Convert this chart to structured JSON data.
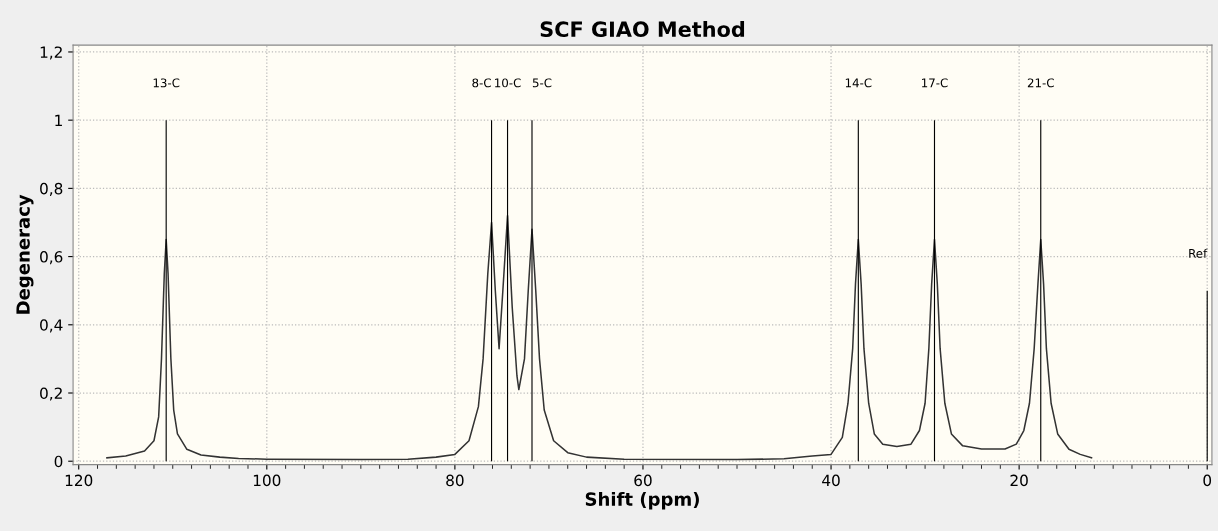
{
  "chart_data": {
    "type": "line",
    "title": "SCF GIAO Method",
    "xlabel": "Shift (ppm)",
    "ylabel": "Degeneracy",
    "xlim": [
      120.6,
      -0.5
    ],
    "ylim": [
      -0.01,
      1.22
    ],
    "xticks": [
      120,
      100,
      80,
      60,
      40,
      20,
      0
    ],
    "yticks": [
      {
        "value": 0,
        "label": "0"
      },
      {
        "value": 0.2,
        "label": "0,2"
      },
      {
        "value": 0.4,
        "label": "0,4"
      },
      {
        "value": 0.6,
        "label": "0,6"
      },
      {
        "value": 0.8,
        "label": "0,8"
      },
      {
        "value": 1,
        "label": "1"
      },
      {
        "value": 1.2,
        "label": "1,2"
      }
    ],
    "grid": true,
    "marker": "none",
    "line_style": "solid",
    "series": [
      {
        "color": "#333333",
        "x": [
          117,
          115,
          113,
          112,
          111.5,
          111.2,
          110.9,
          110.7,
          110.5,
          110.2,
          109.9,
          109.5,
          108.5,
          107,
          105,
          103,
          100,
          90,
          85,
          82,
          80,
          78.5,
          77.5,
          77,
          76.5,
          76.1,
          75.7,
          75.3,
          74.9,
          74.4,
          73.9,
          73.4,
          73.2,
          72.6,
          72.2,
          71.8,
          71.4,
          71.0,
          70.5,
          69.5,
          68,
          66,
          62,
          50,
          45,
          42,
          40,
          38.8,
          38.2,
          37.7,
          37.4,
          37.1,
          36.8,
          36.5,
          36,
          35.4,
          34.5,
          33,
          31.5,
          30.6,
          30,
          29.6,
          29.3,
          29.0,
          28.7,
          28.4,
          27.9,
          27.2,
          26,
          24,
          21.5,
          20.3,
          19.5,
          18.9,
          18.4,
          18.0,
          17.7,
          17.4,
          17.1,
          16.6,
          15.9,
          14.7,
          13.5,
          12.3
        ],
        "values": [
          0.01,
          0.015,
          0.03,
          0.06,
          0.13,
          0.3,
          0.55,
          0.65,
          0.55,
          0.3,
          0.15,
          0.08,
          0.035,
          0.018,
          0.012,
          0.008,
          0.006,
          0.005,
          0.006,
          0.012,
          0.02,
          0.06,
          0.16,
          0.3,
          0.55,
          0.7,
          0.5,
          0.33,
          0.5,
          0.72,
          0.45,
          0.25,
          0.21,
          0.3,
          0.5,
          0.68,
          0.5,
          0.3,
          0.15,
          0.06,
          0.025,
          0.012,
          0.006,
          0.005,
          0.007,
          0.015,
          0.02,
          0.07,
          0.17,
          0.33,
          0.52,
          0.65,
          0.52,
          0.33,
          0.17,
          0.08,
          0.05,
          0.043,
          0.05,
          0.09,
          0.17,
          0.33,
          0.52,
          0.65,
          0.52,
          0.33,
          0.17,
          0.08,
          0.045,
          0.036,
          0.036,
          0.05,
          0.09,
          0.17,
          0.33,
          0.52,
          0.65,
          0.52,
          0.33,
          0.17,
          0.08,
          0.035,
          0.02,
          0.01
        ]
      },
      {
        "type": "bar",
        "color": "#000000",
        "x": [
          110.7,
          76.1,
          74.4,
          71.8,
          37.1,
          29.0,
          17.7,
          0
        ],
        "values": [
          1,
          1,
          1,
          1,
          1,
          1,
          1,
          0.5
        ]
      }
    ],
    "annotations": [
      {
        "text": "13-C",
        "x": 110.7,
        "y": 1
      },
      {
        "text": "8-C",
        "x": 76.1,
        "y": 1
      },
      {
        "text": "10-C",
        "x": 74.4,
        "y": 1
      },
      {
        "text": "5-C",
        "x": 71.8,
        "y": 1
      },
      {
        "text": "14-C",
        "x": 37.1,
        "y": 1
      },
      {
        "text": "17-C",
        "x": 29.0,
        "y": 1
      },
      {
        "text": "21-C",
        "x": 17.7,
        "y": 1
      },
      {
        "text": "Ref",
        "x": 0,
        "y": 0.5
      }
    ]
  }
}
